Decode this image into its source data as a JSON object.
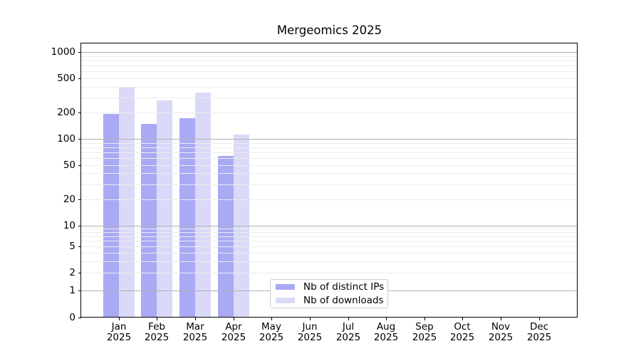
{
  "chart_data": {
    "type": "bar",
    "title": "Mergeomics 2025",
    "categories": [
      "Jan",
      "Feb",
      "Mar",
      "Apr",
      "May",
      "Jun",
      "Jul",
      "Aug",
      "Sep",
      "Oct",
      "Nov",
      "Dec"
    ],
    "category_year": "2025",
    "series": [
      {
        "name": "Nb of distinct IPs",
        "color": "#a9a9f4",
        "values": [
          193,
          148,
          173,
          64,
          null,
          null,
          null,
          null,
          null,
          null,
          null,
          null
        ]
      },
      {
        "name": "Nb of downloads",
        "color": "#dadaf8",
        "values": [
          401,
          280,
          342,
          112,
          null,
          null,
          null,
          null,
          null,
          null,
          null,
          null
        ]
      }
    ],
    "y_axis": {
      "scale": "symlog",
      "ticks": [
        0,
        1,
        2,
        5,
        10,
        20,
        50,
        100,
        200,
        500,
        1000
      ],
      "ylim": [
        0,
        1270
      ]
    },
    "x_axis_label": "",
    "y_axis_label": "",
    "grid": true,
    "grid_above_bars": true,
    "legend": {
      "position": "lower center-left"
    },
    "colors": {
      "major_grid": "#b2b2b2",
      "minor_grid": "#ececec",
      "spine": "#000000",
      "text": "#000000",
      "background": "#ffffff"
    }
  }
}
